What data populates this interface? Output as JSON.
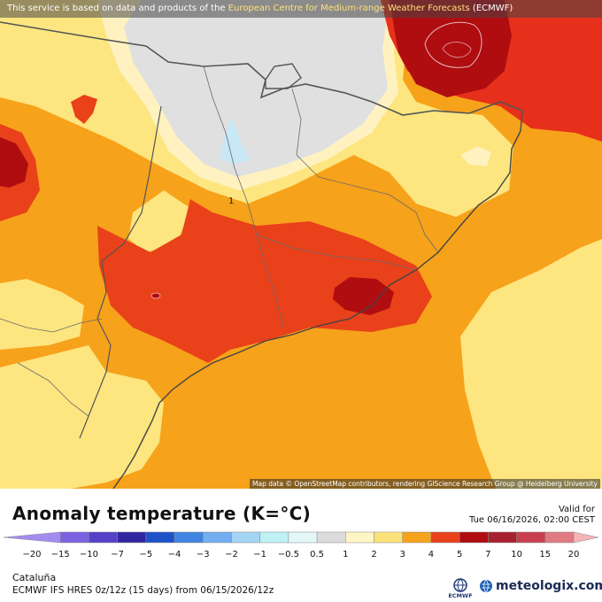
{
  "banner": {
    "prefix": "This service is based on data and products of the ",
    "highlight": "European Centre for Medium-range Weather Forecasts",
    "suffix": " (ECMWF)"
  },
  "map": {
    "attribution": "Map data © OpenStreetMap contributors, rendering GIScience Research Group @ Heidelberg University",
    "contour_label": "1",
    "colors": {
      "grey": "#e0e0e0",
      "pale": "#fff2c0",
      "yellow": "#fde580",
      "orange": "#f6a21a",
      "red_orange": "#e9411a",
      "dark_red": "#b00d10",
      "red": "#e7301b",
      "pale_blue": "#c9e8f6",
      "border": "#555555",
      "coast": "#444444"
    }
  },
  "header": {
    "title": "Anomaly temperature (K=°C)",
    "valid_label": "Valid for",
    "valid_date": "Tue 06/16/2026, 02:00 CEST"
  },
  "legend": {
    "ticks": [
      "−20",
      "−15",
      "−10",
      "−7",
      "−5",
      "−4",
      "−3",
      "−2",
      "−1",
      "−0.5",
      "0.5",
      "1",
      "2",
      "3",
      "4",
      "5",
      "7",
      "10",
      "15",
      "20"
    ],
    "colors": [
      "#a38cf0",
      "#7a62e0",
      "#5540c8",
      "#3225a0",
      "#1f52c8",
      "#3f84e0",
      "#72aef0",
      "#a4d4f4",
      "#bff0f4",
      "#e4f7f7",
      "#dcdcdc",
      "#fff5c4",
      "#fce27a",
      "#f6a21a",
      "#e9411a",
      "#b00d10",
      "#a8212e",
      "#c8404e",
      "#e27a82",
      "#f4b4b8"
    ]
  },
  "footer": {
    "region": "Cataluña",
    "model_line": "ECMWF IFS HRES 0z/12z (15 days) from  06/15/2026/12z",
    "ecmwf_label": "ECMWF",
    "brand": "meteologix.com"
  }
}
